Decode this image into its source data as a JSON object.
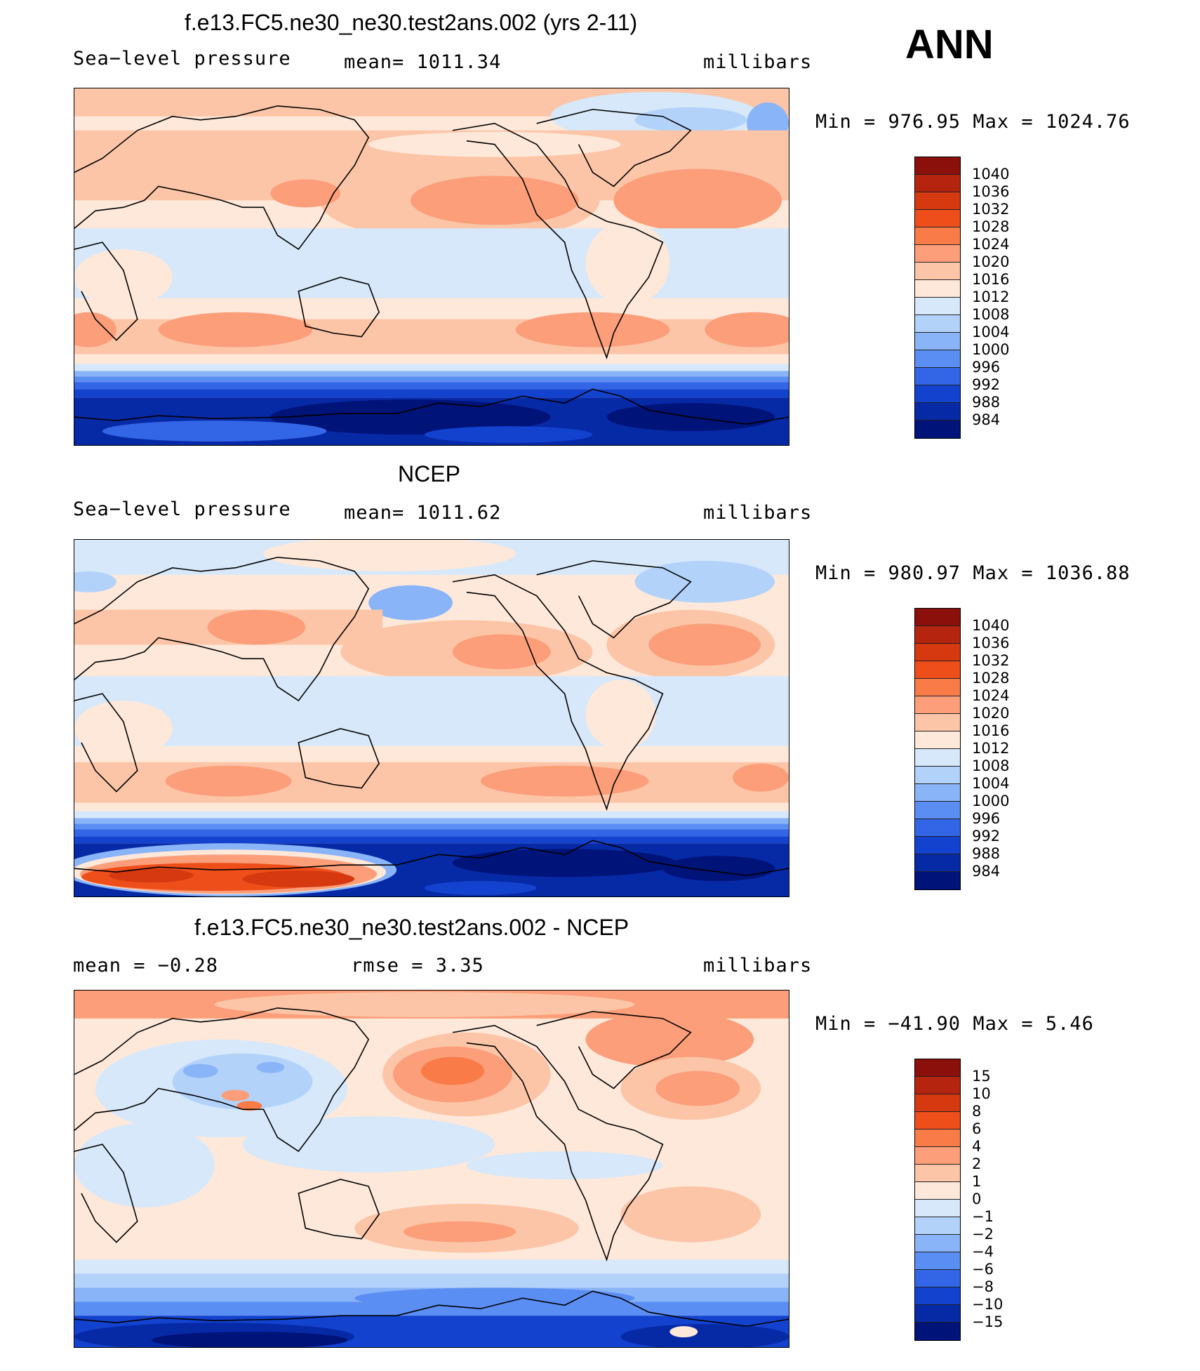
{
  "header": {
    "season": "ANN"
  },
  "panels": [
    {
      "title": "f.e13.FC5.ne30_ne30.test2ans.002 (yrs 2-11)",
      "left_label": "Sea−level pressure",
      "center_label": "mean=  1011.34",
      "units": "millibars",
      "minmax": "Min  =  976.95  Max  =  1024.76"
    },
    {
      "title": "NCEP",
      "left_label": "Sea−level pressure",
      "center_label": "mean=  1011.62",
      "units": "millibars",
      "minmax": "Min  =  980.97  Max  =  1036.88"
    },
    {
      "title": "f.e13.FC5.ne30_ne30.test2ans.002 - NCEP",
      "left_label": "mean  =    −0.28",
      "center_label": "rmse  =     3.35",
      "units": "millibars",
      "minmax": "Min  =  −41.90  Max  =     5.46"
    }
  ],
  "colorbars": {
    "abs": {
      "labels": [
        "1040",
        "1036",
        "1032",
        "1028",
        "1024",
        "1020",
        "1016",
        "1012",
        "1008",
        "1004",
        "1000",
        "996",
        "992",
        "988",
        "984"
      ],
      "colors": [
        "#8b0f0a",
        "#b5240f",
        "#d6380f",
        "#ee4e1a",
        "#f97b48",
        "#fb9e79",
        "#fcc5a7",
        "#fee8da",
        "#d6e8f9",
        "#b3d2fa",
        "#8ab4f8",
        "#5b8ef3",
        "#3266e6",
        "#1342cf",
        "#0629a6",
        "#001379"
      ]
    },
    "diff": {
      "labels": [
        "15",
        "10",
        "8",
        "6",
        "4",
        "2",
        "1",
        "0",
        "−1",
        "−2",
        "−4",
        "−6",
        "−8",
        "−10",
        "−15"
      ],
      "colors": [
        "#8b0f0a",
        "#b5240f",
        "#d6380f",
        "#ee4e1a",
        "#f97b48",
        "#fb9e79",
        "#fcc5a7",
        "#fee8da",
        "#d6e8f9",
        "#b3d2fa",
        "#8ab4f8",
        "#5b8ef3",
        "#3266e6",
        "#1342cf",
        "#0629a6",
        "#001379"
      ]
    }
  }
}
